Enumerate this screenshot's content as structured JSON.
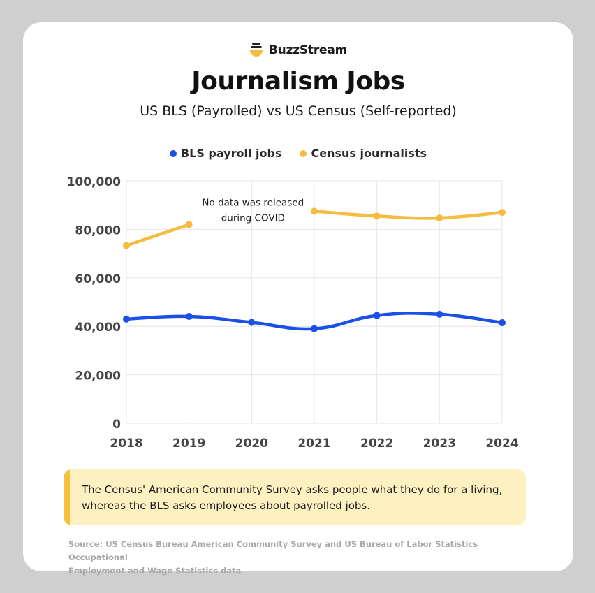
{
  "brand": {
    "name": "BuzzStream",
    "icon": "bee-icon"
  },
  "colors": {
    "bls": "#1a4fe8",
    "census": "#f4bd40",
    "grid": "#e6e6e6"
  },
  "chart_data": {
    "type": "line",
    "title": "Journalism Jobs",
    "subtitle": "US BLS (Payrolled) vs US Census (Self-reported)",
    "x": [
      "2018",
      "2019",
      "2020",
      "2021",
      "2022",
      "2023",
      "2024"
    ],
    "y_ticks": [
      "100,000",
      "80,000",
      "60,000",
      "40,000",
      "20,000",
      "0"
    ],
    "ylim": [
      0,
      100000
    ],
    "grid": true,
    "legend_position": "top-center",
    "series": [
      {
        "name": "BLS payroll jobs",
        "values": [
          43000,
          44100,
          41600,
          39000,
          44500,
          45000,
          41500
        ]
      },
      {
        "name": "Census journalists",
        "values": [
          73300,
          82000,
          null,
          87500,
          85500,
          84700,
          87000
        ]
      }
    ],
    "annotation": {
      "lines": [
        "No data was released",
        "during COVID"
      ],
      "x": "2020",
      "y": 84000
    }
  },
  "callout": {
    "text_line1": "The Census' American Community Survey asks people what they do for a living,",
    "text_line2": "whereas the BLS asks employees about payrolled jobs."
  },
  "source": {
    "line1": "Source: US Census Bureau American Community Survey and US Bureau of Labor Statistics Occupational",
    "line2": "Employment and Wage Statistics data"
  }
}
